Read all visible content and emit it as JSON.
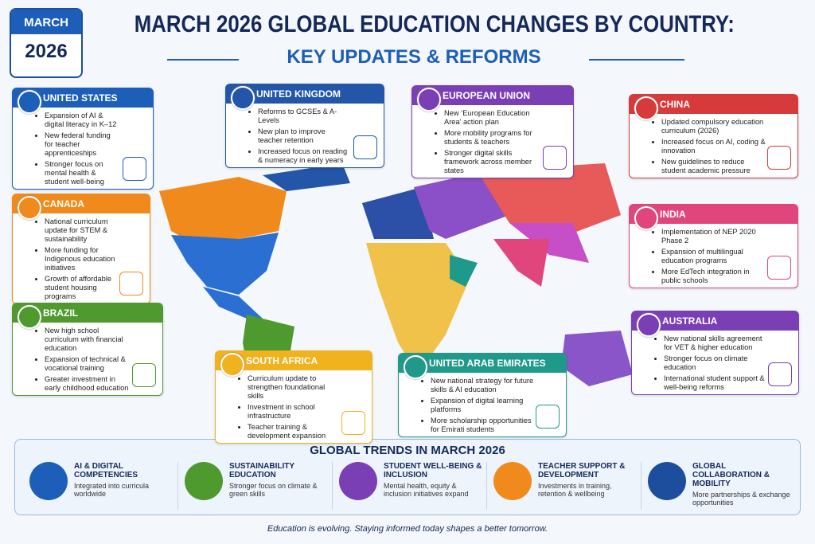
{
  "header": {
    "badge_month": "MARCH",
    "badge_year": "2026",
    "title": "MARCH 2026 GLOBAL EDUCATION CHANGES BY COUNTRY:",
    "subtitle": "KEY UPDATES & REFORMS"
  },
  "countries": [
    {
      "name": "UNITED STATES",
      "items": [
        "Expansion of AI & digital literacy in K–12",
        "New federal funding for teacher apprenticeships",
        "Stronger focus on mental health & student well-being"
      ]
    },
    {
      "name": "UNITED KINGDOM",
      "items": [
        "Reforms to GCSEs & A-Levels",
        "New plan to improve teacher retention",
        "Increased focus on reading & numeracy in early years"
      ]
    },
    {
      "name": "EUROPEAN UNION",
      "items": [
        "New ‘European Education Area’ action plan",
        "More mobility programs for students & teachers",
        "Stronger digital skills framework across member states"
      ]
    },
    {
      "name": "CHINA",
      "items": [
        "Updated compulsory education curriculum (2026)",
        "Increased focus on AI, coding & innovation",
        "New guidelines to reduce student academic pressure"
      ]
    },
    {
      "name": "CANADA",
      "items": [
        "National curriculum update for STEM & sustainability",
        "More funding for Indigenous education initiatives",
        "Growth of affordable student housing programs"
      ]
    },
    {
      "name": "INDIA",
      "items": [
        "Implementation of NEP 2020 Phase 2",
        "Expansion of multilingual education programs",
        "More EdTech integration in public schools"
      ]
    },
    {
      "name": "BRAZIL",
      "items": [
        "New high school curriculum with financial education",
        "Expansion of technical & vocational training",
        "Greater investment in early childhood education"
      ]
    },
    {
      "name": "AUSTRALIA",
      "items": [
        "New national skills agreement for VET & higher education",
        "Stronger focus on climate education",
        "International student support & well-being reforms"
      ]
    },
    {
      "name": "SOUTH AFRICA",
      "items": [
        "Curriculum update to strengthen foundational skills",
        "Investment in school infrastructure",
        "Teacher training & development expansion"
      ]
    },
    {
      "name": "UNITED ARAB EMIRATES",
      "items": [
        "New national strategy for future skills & AI education",
        "Expansion of digital learning platforms",
        "More scholarship opportunities for Emirati students"
      ]
    }
  ],
  "trends": {
    "title": "GLOBAL TRENDS IN MARCH 2026",
    "items": [
      {
        "title": "AI & DIGITAL COMPETENCIES",
        "text": "Integrated into curricula worldwide"
      },
      {
        "title": "SUSTAINABILITY EDUCATION",
        "text": "Stronger focus on climate & green skills"
      },
      {
        "title": "STUDENT WELL-BEING & INCLUSION",
        "text": "Mental health, equity & inclusion initiatives expand"
      },
      {
        "title": "TEACHER SUPPORT & DEVELOPMENT",
        "text": "Investments in training, retention & wellbeing"
      },
      {
        "title": "GLOBAL COLLABORATION & MOBILITY",
        "text": "More partnerships & exchange opportunities"
      }
    ]
  },
  "footer": "Education is evolving. Staying informed today shapes a better tomorrow."
}
